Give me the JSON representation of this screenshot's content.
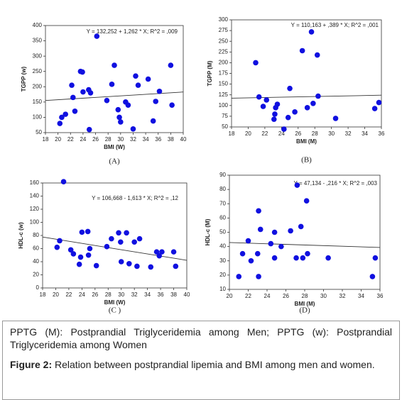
{
  "chart_data": [
    {
      "type": "scatter",
      "ylabel": "TGPP (w)",
      "xlabel": "BMI (W)",
      "panel_label": "(A)",
      "annotation": "Y = 132,252 + 1,262 * X; R^2 = ,009",
      "trend": {
        "intercept": 132.252,
        "slope": 1.262
      },
      "color": "#1010e0",
      "xlim": [
        18,
        40
      ],
      "xticks": [
        18,
        20,
        22,
        24,
        26,
        28,
        30,
        32,
        34,
        36,
        38,
        40
      ],
      "ylim": [
        50,
        400
      ],
      "yticks": [
        50,
        100,
        150,
        200,
        250,
        300,
        350,
        400
      ],
      "x": [
        20.3,
        20.6,
        21.2,
        22.2,
        22.4,
        22.7,
        23.6,
        23.9,
        24,
        24.9,
        25,
        25.2,
        26.2,
        27.8,
        28.6,
        29,
        29.6,
        29.8,
        30,
        30.8,
        31.2,
        32,
        32.4,
        32.8,
        34.4,
        35.2,
        35.6,
        36.2,
        38,
        38.2
      ],
      "values": [
        80,
        100,
        110,
        205,
        165,
        120,
        250,
        248,
        183,
        190,
        60,
        180,
        365,
        155,
        208,
        270,
        125,
        100,
        85,
        150,
        140,
        62,
        235,
        205,
        225,
        88,
        152,
        185,
        270,
        140
      ]
    },
    {
      "type": "scatter",
      "ylabel": "TGPP (M)",
      "xlabel": "BMI (M)",
      "panel_label": "(B)",
      "annotation": "Y = 110,163 + ,389 * X; R^2 = ,001",
      "trend": {
        "intercept": 110.163,
        "slope": 0.389
      },
      "color": "#1010e0",
      "xlim": [
        18,
        36
      ],
      "xticks": [
        18,
        20,
        22,
        24,
        26,
        28,
        30,
        32,
        34,
        36
      ],
      "ylim": [
        50,
        300
      ],
      "yticks": [
        50,
        75,
        100,
        125,
        150,
        175,
        200,
        225,
        250,
        275,
        300
      ],
      "x": [
        20.9,
        21.3,
        21.8,
        22.2,
        23.1,
        23.2,
        23.3,
        23.5,
        24.3,
        24.8,
        25,
        25.6,
        26.5,
        27.1,
        27.6,
        27.8,
        28.3,
        28.4,
        30.5,
        35.2,
        35.7
      ],
      "values": [
        200,
        120,
        98,
        113,
        68,
        80,
        95,
        103,
        45,
        72,
        140,
        85,
        228,
        95,
        272,
        105,
        218,
        122,
        70,
        93,
        107
      ]
    },
    {
      "type": "scatter",
      "ylabel": "HDL-c (w)",
      "xlabel": "BMI (W)",
      "panel_label": "(C )",
      "annotation": "Y = 106,668 - 1,613 * X; R^2 = ,12",
      "trend": {
        "intercept": 106.668,
        "slope": -1.613
      },
      "color": "#1010e0",
      "xlim": [
        18,
        40
      ],
      "xticks": [
        18,
        20,
        22,
        24,
        26,
        28,
        30,
        32,
        34,
        36,
        38,
        40
      ],
      "ylim": [
        0,
        160
      ],
      "yticks": [
        0,
        20,
        40,
        60,
        80,
        100,
        120,
        140,
        160
      ],
      "x": [
        20.2,
        20.6,
        21.2,
        22.3,
        22.7,
        23.6,
        23.8,
        24,
        24.9,
        25,
        25.2,
        26.2,
        27.8,
        28.5,
        29.6,
        29.9,
        30,
        30.8,
        31.2,
        32,
        32.4,
        32.8,
        34.5,
        35.4,
        35.8,
        36.2,
        38,
        38.3
      ],
      "values": [
        62,
        72,
        162,
        58,
        52,
        36,
        47,
        85,
        86,
        50,
        60,
        34,
        63,
        75,
        84,
        70,
        40,
        84,
        37,
        70,
        33,
        75,
        32,
        55,
        49,
        55,
        55,
        33
      ]
    },
    {
      "type": "scatter",
      "ylabel": "HDL-c (M)",
      "xlabel": "BMI (M)",
      "panel_label": "(D)",
      "annotation": "Y = 47,134 - ,216 * X; R^2 = ,003",
      "trend": {
        "intercept": 47.134,
        "slope": -0.216
      },
      "color": "#1010e0",
      "xlim": [
        20,
        36
      ],
      "xticks": [
        20,
        22,
        24,
        26,
        28,
        30,
        32,
        34,
        36
      ],
      "ylim": [
        10,
        90
      ],
      "yticks": [
        10,
        20,
        30,
        40,
        50,
        60,
        70,
        80,
        90
      ],
      "x": [
        21,
        21.4,
        22,
        22.3,
        23,
        23.1,
        23.1,
        23.3,
        24.4,
        24.8,
        24.8,
        25.5,
        26.5,
        27.1,
        27.6,
        27.8,
        28.2,
        28.3,
        27.2,
        30.5,
        35.2,
        35.5
      ],
      "values": [
        19,
        35,
        44,
        30,
        35,
        65,
        19,
        52,
        42,
        50,
        32,
        40,
        51,
        32,
        54,
        32,
        72,
        35,
        83,
        32,
        19,
        32
      ]
    }
  ],
  "caption": {
    "note": "PPTG (M): Postprandial Triglyceridemia among Men; PPTG (w): Postprandial Triglyceridemia among Women",
    "figure_label": "Figure 2:",
    "figure_text": "Relation between postprandial lipemia and BMI among men and women."
  }
}
